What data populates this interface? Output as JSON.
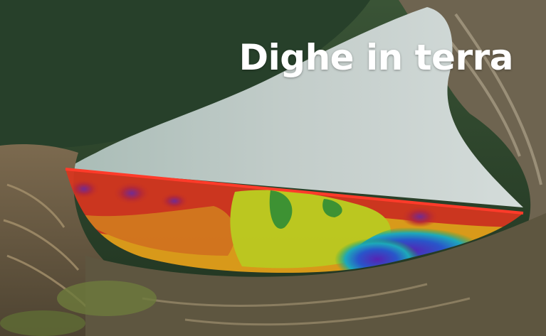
{
  "title": "Dighe in terra",
  "colors": {
    "title_text": "#ffffff",
    "reservoir_water": "#b9c6c0",
    "forest": "#2f4a2c",
    "resistivity_low": "#6a2fbf",
    "resistivity_high": "#e02818"
  },
  "image_content": "aerial-photo-earth-dam-with-resistivity-tomography-overlay"
}
